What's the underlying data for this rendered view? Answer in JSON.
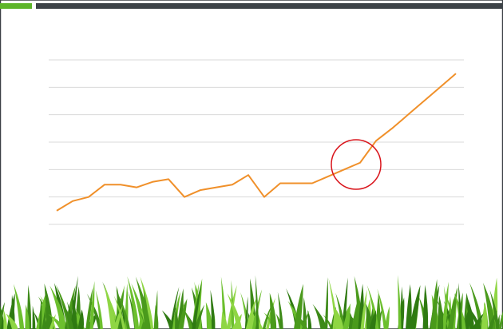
{
  "chart_data": {
    "type": "line",
    "categories": [
      null,
      null,
      null,
      null,
      null,
      null,
      null,
      null,
      null,
      null,
      null,
      null,
      null,
      null,
      null,
      null,
      null,
      null,
      null,
      null,
      null,
      null,
      null,
      null,
      null,
      null
    ],
    "series": [
      {
        "color": "#f0902a",
        "values": [
          0.5,
          0.85,
          1.0,
          1.45,
          1.45,
          1.35,
          1.55,
          1.65,
          1.0,
          1.25,
          1.35,
          1.45,
          1.8,
          1.0,
          1.5,
          1.5,
          1.5,
          1.75,
          2.0,
          2.25,
          3.05,
          3.5,
          4.0,
          4.5,
          5.0,
          5.5
        ]
      }
    ],
    "ylim": [
      0,
      6
    ],
    "yticks": [
      0,
      1,
      2,
      3,
      4,
      5,
      6
    ],
    "grid": true
  }
}
